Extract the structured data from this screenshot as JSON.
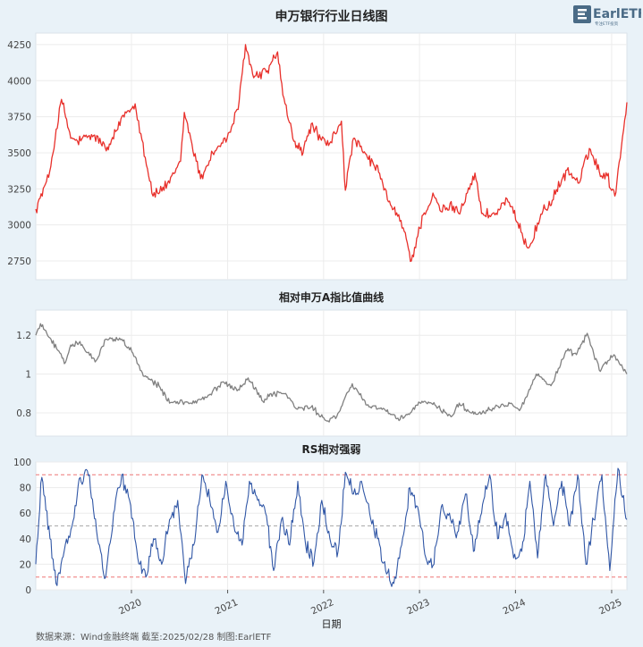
{
  "logo": {
    "text": "EarlETF",
    "subtext": "专注ETF投资",
    "color": "#4a6b86"
  },
  "footer": {
    "source": "数据来源：Wind金融终端 截至:2025/02/28 制图:EarlETF"
  },
  "colors": {
    "price": "#e8302b",
    "ratio": "#808080",
    "rs": "#3157a6",
    "band": "#ee7777",
    "mid": "#aaaaaa"
  },
  "chart_data": [
    {
      "type": "line",
      "title": "申万银行行业日线图",
      "xlabel": "",
      "ylabel": "",
      "xlim": [
        "2019-01-02",
        "2025-02-28"
      ],
      "ylim": [
        2620,
        4330
      ],
      "yticks": [
        2750,
        3000,
        3250,
        3500,
        3750,
        4000,
        4250
      ],
      "grid": true,
      "x": [
        "2019-01-02",
        "2019-02-20",
        "2019-04-10",
        "2019-05-15",
        "2019-06-10",
        "2019-08-10",
        "2019-10-05",
        "2019-11-30",
        "2020-01-15",
        "2020-02-10",
        "2020-03-23",
        "2020-05-25",
        "2020-07-06",
        "2020-07-20",
        "2020-09-20",
        "2020-11-05",
        "2020-12-30",
        "2021-02-10",
        "2021-03-10",
        "2021-04-10",
        "2021-06-01",
        "2021-07-10",
        "2021-07-30",
        "2021-09-10",
        "2021-10-15",
        "2021-11-15",
        "2021-12-20",
        "2022-01-20",
        "2022-03-10",
        "2022-03-25",
        "2022-04-25",
        "2022-06-01",
        "2022-07-10",
        "2022-08-10",
        "2022-09-05",
        "2022-10-10",
        "2022-10-31",
        "2022-12-01",
        "2023-01-15",
        "2023-02-25",
        "2023-03-20",
        "2023-05-10",
        "2023-05-30",
        "2023-07-31",
        "2023-08-25",
        "2023-10-15",
        "2023-11-30",
        "2024-01-22",
        "2024-02-20",
        "2024-04-15",
        "2024-05-20",
        "2024-07-15",
        "2024-08-30",
        "2024-10-08",
        "2024-11-15",
        "2024-12-15",
        "2025-01-13",
        "2025-02-28"
      ],
      "y": [
        3110,
        3330,
        3870,
        3600,
        3580,
        3620,
        3520,
        3760,
        3840,
        3590,
        3200,
        3290,
        3440,
        3780,
        3320,
        3500,
        3600,
        3800,
        4250,
        4020,
        4070,
        4200,
        3900,
        3580,
        3500,
        3700,
        3600,
        3550,
        3720,
        3240,
        3600,
        3500,
        3420,
        3320,
        3160,
        3060,
        2980,
        2750,
        3070,
        3200,
        3100,
        3130,
        3080,
        3360,
        3080,
        3070,
        3180,
        2950,
        2840,
        3100,
        3170,
        3380,
        3290,
        3530,
        3370,
        3340,
        3200,
        3850
      ]
    },
    {
      "type": "line",
      "title": "相对申万A指比值曲线",
      "xlabel": "",
      "ylabel": "",
      "xlim": [
        "2019-01-02",
        "2025-02-28"
      ],
      "ylim": [
        0.68,
        1.33
      ],
      "yticks": [
        0.8,
        1.0,
        1.2
      ],
      "grid": true,
      "x": [
        "2019-01-02",
        "2019-01-20",
        "2019-03-01",
        "2019-04-25",
        "2019-05-15",
        "2019-06-15",
        "2019-08-20",
        "2019-09-25",
        "2019-11-25",
        "2020-01-15",
        "2020-02-15",
        "2020-04-15",
        "2020-05-25",
        "2020-06-15",
        "2020-08-15",
        "2020-10-15",
        "2020-12-15",
        "2021-02-10",
        "2021-03-20",
        "2021-05-15",
        "2021-06-15",
        "2021-08-10",
        "2021-09-20",
        "2021-11-15",
        "2022-01-10",
        "2022-02-20",
        "2022-04-20",
        "2022-06-15",
        "2022-08-20",
        "2022-10-15",
        "2022-11-15",
        "2023-01-10",
        "2023-03-01",
        "2023-05-01",
        "2023-06-01",
        "2023-07-15",
        "2023-08-15",
        "2023-10-15",
        "2023-12-15",
        "2024-01-20",
        "2024-02-10",
        "2024-03-20",
        "2024-05-15",
        "2024-07-15",
        "2024-08-20",
        "2024-09-30",
        "2024-11-15",
        "2025-01-10",
        "2025-02-28"
      ],
      "y": [
        1.2,
        1.26,
        1.18,
        1.06,
        1.15,
        1.16,
        1.07,
        1.18,
        1.18,
        1.09,
        0.99,
        0.94,
        0.85,
        0.86,
        0.85,
        0.88,
        0.96,
        0.92,
        0.98,
        0.86,
        0.9,
        0.9,
        0.82,
        0.83,
        0.76,
        0.78,
        0.95,
        0.84,
        0.82,
        0.76,
        0.79,
        0.86,
        0.84,
        0.78,
        0.85,
        0.8,
        0.8,
        0.83,
        0.85,
        0.82,
        0.88,
        1.0,
        0.94,
        1.12,
        1.1,
        1.21,
        1.02,
        1.1,
        1.0
      ]
    },
    {
      "type": "line",
      "title": "RS相对强弱",
      "xlabel": "日期",
      "ylabel": "",
      "xlim": [
        "2019-01-02",
        "2025-02-28"
      ],
      "ylim": [
        0,
        100
      ],
      "yticks": [
        0,
        20,
        40,
        60,
        80,
        100
      ],
      "xticks": [
        "2020",
        "2021",
        "2022",
        "2023",
        "2024",
        "2025"
      ],
      "grid": true,
      "reference_lines": [
        90,
        50,
        10
      ],
      "x": [
        "2019-01-02",
        "2019-01-25",
        "2019-02-25",
        "2019-03-20",
        "2019-04-20",
        "2019-05-20",
        "2019-06-20",
        "2019-07-25",
        "2019-08-25",
        "2019-09-25",
        "2019-10-25",
        "2019-11-25",
        "2019-12-25",
        "2020-01-25",
        "2020-02-25",
        "2020-03-25",
        "2020-04-25",
        "2020-05-25",
        "2020-06-25",
        "2020-07-25",
        "2020-08-25",
        "2020-09-25",
        "2020-10-25",
        "2020-11-25",
        "2020-12-25",
        "2021-01-25",
        "2021-02-25",
        "2021-03-25",
        "2021-04-25",
        "2021-05-25",
        "2021-06-25",
        "2021-07-25",
        "2021-08-25",
        "2021-09-25",
        "2021-10-25",
        "2021-11-25",
        "2021-12-25",
        "2022-01-25",
        "2022-02-25",
        "2022-03-25",
        "2022-04-25",
        "2022-05-25",
        "2022-06-25",
        "2022-07-25",
        "2022-08-25",
        "2022-09-25",
        "2022-10-25",
        "2022-11-25",
        "2022-12-25",
        "2023-01-25",
        "2023-02-25",
        "2023-03-25",
        "2023-04-25",
        "2023-05-25",
        "2023-06-25",
        "2023-07-25",
        "2023-08-25",
        "2023-09-25",
        "2023-10-25",
        "2023-11-25",
        "2023-12-25",
        "2024-01-25",
        "2024-02-25",
        "2024-03-25",
        "2024-04-25",
        "2024-05-25",
        "2024-06-25",
        "2024-07-25",
        "2024-08-25",
        "2024-09-25",
        "2024-10-25",
        "2024-11-25",
        "2024-12-25",
        "2025-01-25",
        "2025-02-28"
      ],
      "y": [
        20,
        88,
        40,
        5,
        30,
        50,
        88,
        90,
        40,
        10,
        60,
        90,
        70,
        25,
        10,
        40,
        20,
        55,
        70,
        5,
        35,
        90,
        70,
        45,
        85,
        50,
        35,
        85,
        70,
        60,
        15,
        55,
        35,
        85,
        35,
        22,
        70,
        40,
        30,
        92,
        75,
        85,
        60,
        40,
        15,
        5,
        35,
        80,
        65,
        25,
        20,
        65,
        60,
        45,
        75,
        30,
        60,
        90,
        40,
        60,
        25,
        30,
        85,
        25,
        90,
        50,
        85,
        50,
        90,
        20,
        55,
        90,
        15,
        95,
        55
      ]
    }
  ]
}
